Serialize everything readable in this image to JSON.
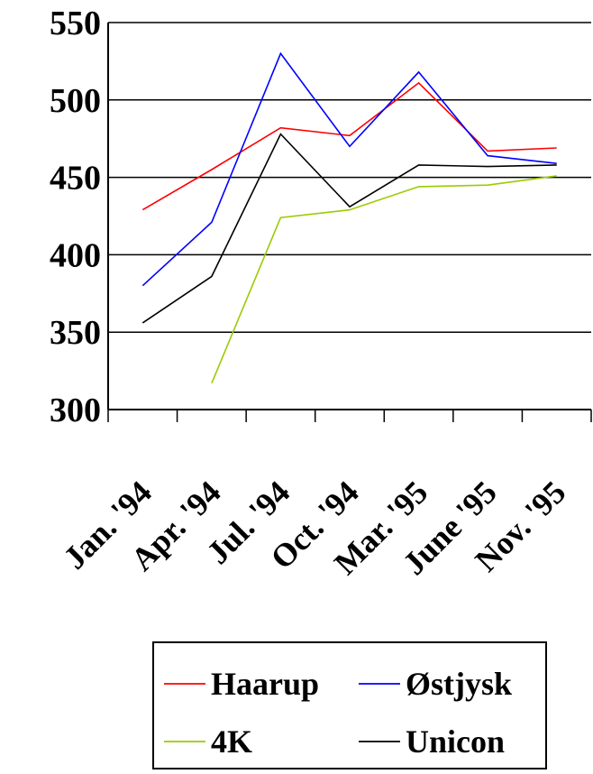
{
  "chart_data": {
    "type": "line",
    "title": "",
    "xlabel": "",
    "ylabel": "",
    "ylim": [
      300,
      550
    ],
    "yticks": [
      300,
      350,
      400,
      450,
      500,
      550
    ],
    "categories": [
      "Jan. '94",
      "Apr. '94",
      "Jul. '94",
      "Oct. '94",
      "Mar. '95",
      "June '95",
      "Nov. '95"
    ],
    "grid": "horizontal",
    "legend_position": "bottom",
    "series": [
      {
        "name": "Haarup",
        "color": "#ff0000",
        "values": [
          429,
          455,
          482,
          477,
          511,
          467,
          469
        ]
      },
      {
        "name": "Østjysk",
        "color": "#0000ff",
        "values": [
          380,
          421,
          530,
          470,
          518,
          464,
          459
        ]
      },
      {
        "name": "4K",
        "color": "#99cc00",
        "values": [
          null,
          317,
          424,
          429,
          444,
          445,
          451
        ]
      },
      {
        "name": "Unicon",
        "color": "#000000",
        "values": [
          356,
          386,
          478,
          431,
          458,
          457,
          458
        ]
      }
    ]
  }
}
